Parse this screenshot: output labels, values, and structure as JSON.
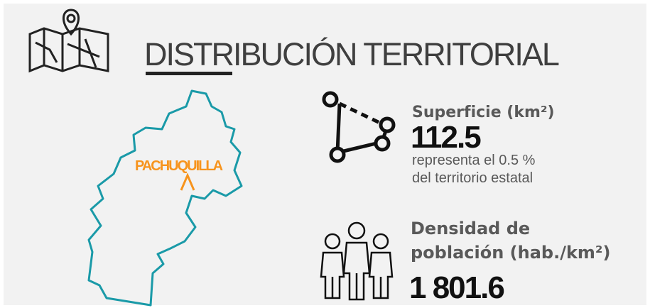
{
  "header": {
    "title": "DISTRIBUCIÓN TERRITORIAL"
  },
  "map": {
    "label": "PACHUQUILLA"
  },
  "surface": {
    "label": "Superficie (km²)",
    "value": "112.5",
    "note": [
      "representa el 0.5 %",
      "del territorio estatal"
    ]
  },
  "density": {
    "label": [
      "Densidad de",
      "población (hab./km²)"
    ],
    "value": "1 801.6"
  }
}
